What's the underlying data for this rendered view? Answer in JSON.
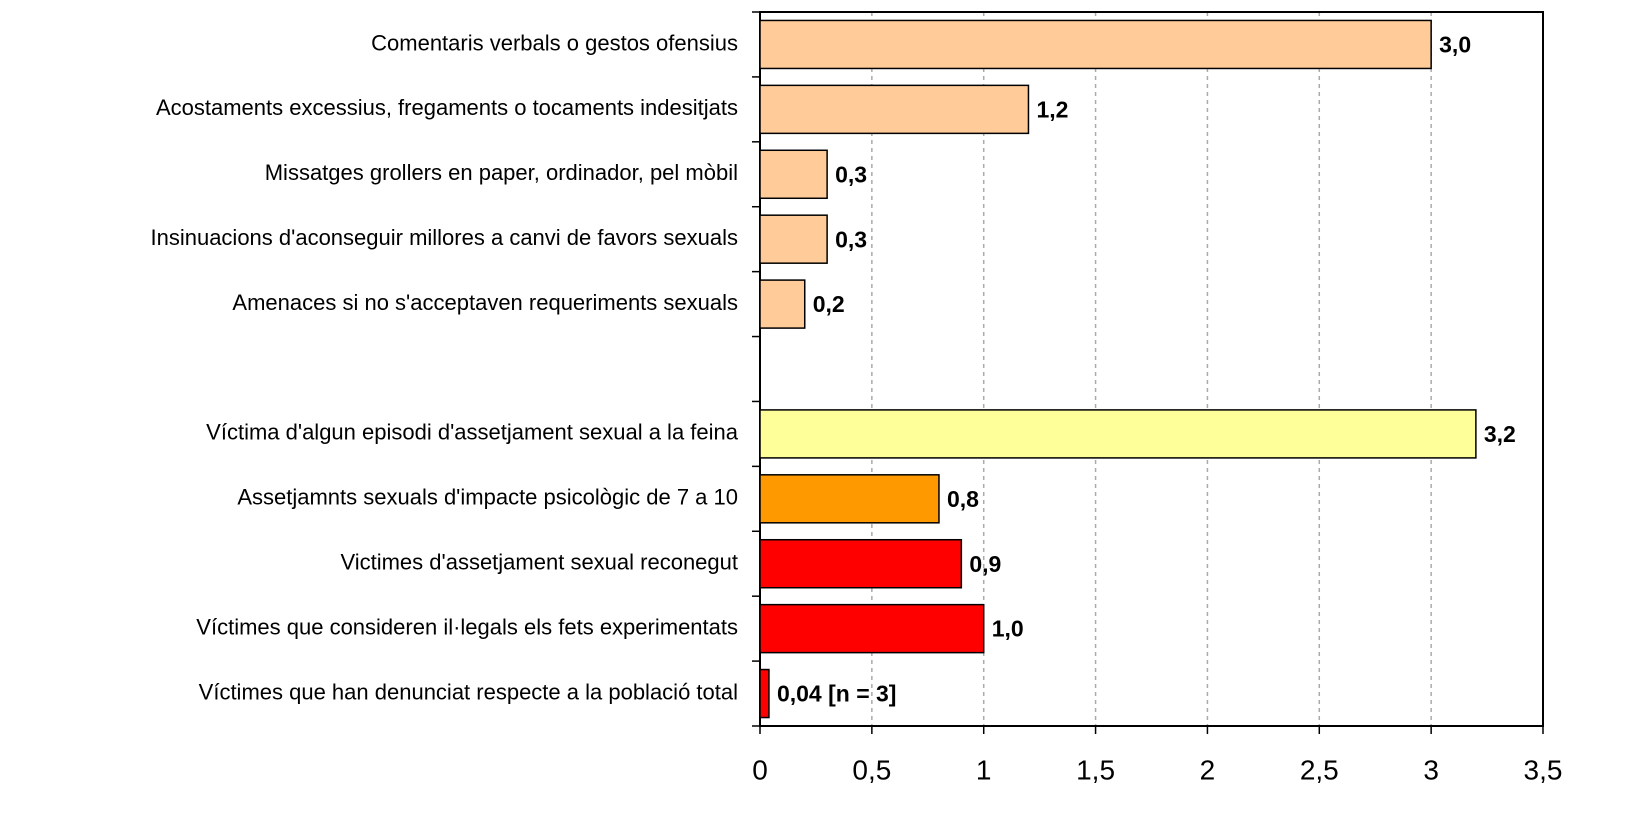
{
  "chart_data": {
    "type": "hbar",
    "categories": [
      "Comentaris verbals o gestos ofensius",
      "Acostaments excessius, fregaments o tocaments indesitjats",
      "Missatges grollers en paper, ordinador, pel mòbil",
      "Insinuacions d'aconseguir millores a canvi de favors sexuals",
      "Amenaces si no s'acceptaven requeriments sexuals",
      null,
      "Víctima d'algun episodi d'assetjament sexual a la feina",
      "Assetjamnts sexuals d'impacte psicològic de 7 a 10",
      "Victimes d'assetjament sexual reconegut",
      "Víctimes que consideren il·legals els fets experimentats",
      "Víctimes que han denunciat respecte a la població total"
    ],
    "values": [
      3.0,
      1.2,
      0.3,
      0.3,
      0.2,
      null,
      3.2,
      0.8,
      0.9,
      1.0,
      0.04
    ],
    "value_labels": [
      "3,0",
      "1,2",
      "0,3",
      "0,3",
      "0,2",
      null,
      "3,2",
      "0,8",
      "0,9",
      "1,0",
      "0,04 [n = 3]"
    ],
    "colors": [
      "#ffcc99",
      "#ffcc99",
      "#ffcc99",
      "#ffcc99",
      "#ffcc99",
      null,
      "#ffff99",
      "#ff9900",
      "#ff0000",
      "#ff0000",
      "#ff0000"
    ],
    "xlim": [
      0,
      3.5
    ],
    "xticks": [
      0,
      {
        "value": 0.5,
        "label": "0,5"
      },
      1,
      {
        "value": 1.5,
        "label": "1,5"
      },
      2,
      {
        "value": 2.5,
        "label": "2,5"
      },
      3,
      {
        "value": 3.5,
        "label": "3,5"
      }
    ],
    "grid": true
  }
}
